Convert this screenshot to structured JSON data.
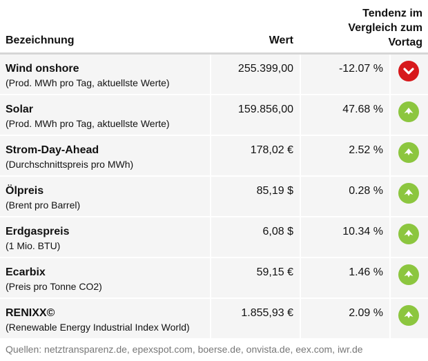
{
  "header": {
    "name_label": "Bezeichnung",
    "value_label": "Wert",
    "trend_line1": "Tendenz im",
    "trend_line2": "Vergleich zum",
    "trend_line3": "Vortag"
  },
  "colors": {
    "up": "#8cc63f",
    "down": "#d7191c"
  },
  "rows": [
    {
      "title": "Wind onshore",
      "subtitle": "(Prod. MWh pro Tag, aktuellste Werte)",
      "value": "255.399,00",
      "change": "-12.07 %",
      "trend": "down",
      "icon": "arrow-down-icon"
    },
    {
      "title": "Solar",
      "subtitle": "(Prod. MWh pro Tag, aktuellste Werte)",
      "value": "159.856,00",
      "change": "47.68 %",
      "trend": "up",
      "icon": "arrow-up-icon"
    },
    {
      "title": "Strom-Day-Ahead",
      "subtitle": "(Durchschnittspreis pro MWh)",
      "value": "178,02 €",
      "change": "2.52 %",
      "trend": "up",
      "icon": "arrow-up-icon"
    },
    {
      "title": "Ölpreis",
      "subtitle": "(Brent pro Barrel)",
      "value": "85,19 $",
      "change": "0.28 %",
      "trend": "up",
      "icon": "arrow-up-icon"
    },
    {
      "title": "Erdgaspreis",
      "subtitle": "(1 Mio. BTU)",
      "value": "6,08 $",
      "change": "10.34 %",
      "trend": "up",
      "icon": "arrow-up-icon"
    },
    {
      "title": "Ecarbix",
      "subtitle": "(Preis pro Tonne CO2)",
      "value": "59,15 €",
      "change": "1.46 %",
      "trend": "up",
      "icon": "arrow-up-icon"
    },
    {
      "title": "RENIXX©",
      "subtitle": "(Renewable Energy Industrial Index World)",
      "value": "1.855,93 €",
      "change": "2.09 %",
      "trend": "up",
      "icon": "arrow-up-icon"
    }
  ],
  "footer": {
    "sources": "Quellen: netztransparenz.de, epexspot.com, boerse.de, onvista.de, eex.com, iwr.de"
  }
}
